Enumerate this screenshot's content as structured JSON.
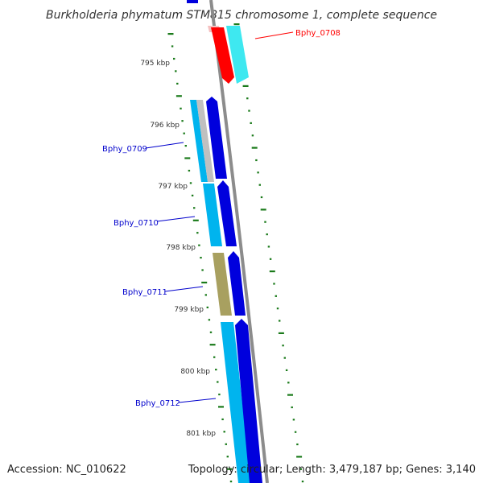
{
  "title": "Burkholderia phymatum STM815 chromosome 1, complete sequence",
  "footer": {
    "accession": "Accession: NC_010622",
    "topology": "Topology: circular; Length: 3,479,187 bp; Genes: 3,140"
  },
  "ticks": [
    "795 kbp",
    "796 kbp",
    "797 kbp",
    "798 kbp",
    "799 kbp",
    "800 kbp",
    "801 kbp"
  ],
  "gene_labels": [
    {
      "name": "Bphy_0708",
      "color": "#ff0000"
    },
    {
      "name": "Bphy_0709",
      "color": "#0000cc"
    },
    {
      "name": "Bphy_0710",
      "color": "#0000cc"
    },
    {
      "name": "Bphy_0711",
      "color": "#0000cc"
    },
    {
      "name": "Bphy_0712",
      "color": "#0000cc"
    }
  ],
  "colors": {
    "backbone": "#8c8c8c",
    "cds_blue": "#0000dd",
    "gene_cyan": "#00b4ee",
    "gene_light_cyan": "#3ee8f0",
    "gene_red": "#ff0000",
    "gene_olive": "#a8a060",
    "gene_pink": "#f5c0c0",
    "gene_gray": "#c0c0c0",
    "tick_green": "#1a7a1a"
  }
}
